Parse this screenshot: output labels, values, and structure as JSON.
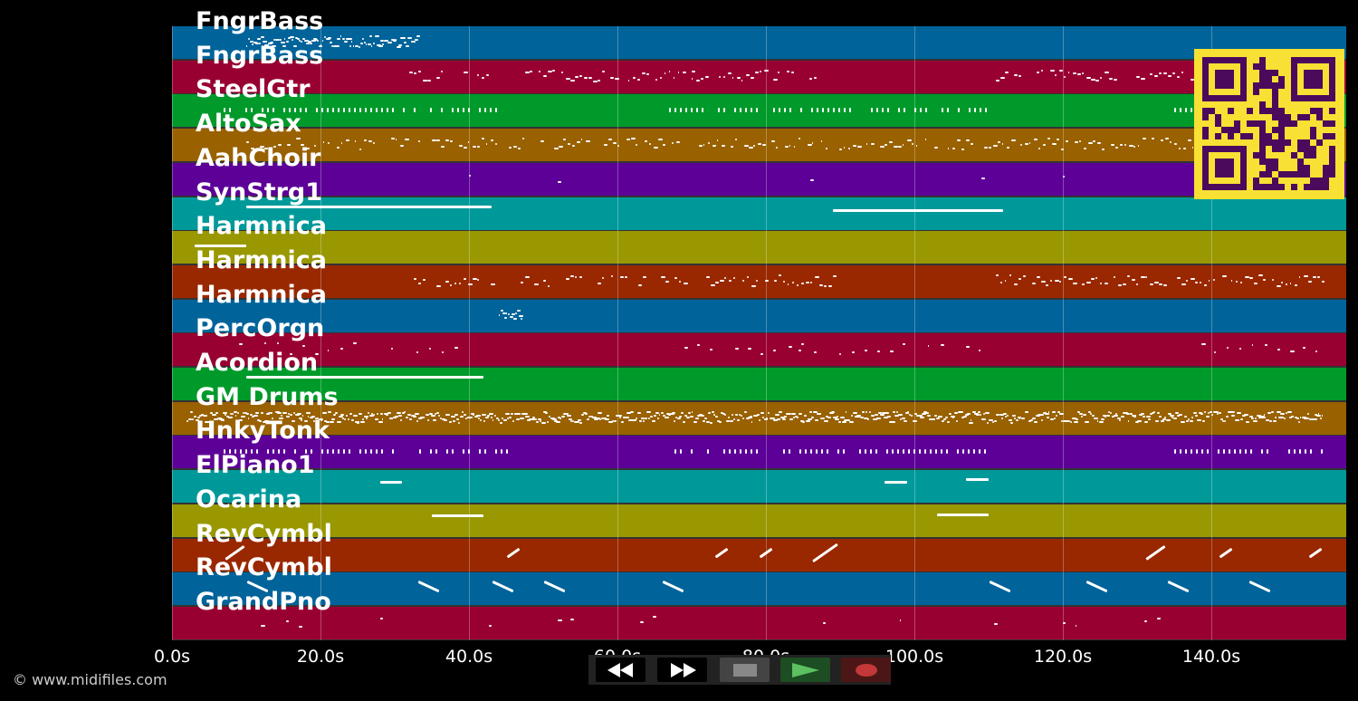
{
  "tracks": [
    {
      "name": "FngrBass",
      "color": "#00639a"
    },
    {
      "name": "FngrBass",
      "color": "#990032"
    },
    {
      "name": "SteelGtr",
      "color": "#009a2a"
    },
    {
      "name": "AltoSax",
      "color": "#996100"
    },
    {
      "name": "AahChoir",
      "color": "#5d0097"
    },
    {
      "name": "SynStrg1",
      "color": "#00999a"
    },
    {
      "name": "Harmnica",
      "color": "#999800"
    },
    {
      "name": "Harmnica",
      "color": "#992800"
    },
    {
      "name": "Harmnica",
      "color": "#00639a"
    },
    {
      "name": "PercOrgn",
      "color": "#990032"
    },
    {
      "name": "Acordion",
      "color": "#009a2a"
    },
    {
      "name": "GM Drums",
      "color": "#996100"
    },
    {
      "name": "HnkyTonk",
      "color": "#5d0097"
    },
    {
      "name": "ElPiano1",
      "color": "#00999a"
    },
    {
      "name": "Ocarina",
      "color": "#999800"
    },
    {
      "name": "RevCymbl",
      "color": "#992800"
    },
    {
      "name": "RevCymbl",
      "color": "#00639a"
    },
    {
      "name": "GrandPno",
      "color": "#990032"
    }
  ],
  "time_axis": {
    "max_seconds": 158,
    "ticks": [
      {
        "t": 0,
        "label": "0.0s"
      },
      {
        "t": 20,
        "label": "20.0s"
      },
      {
        "t": 40,
        "label": "40.0s"
      },
      {
        "t": 60,
        "label": "60.0s"
      },
      {
        "t": 80,
        "label": "80.0s"
      },
      {
        "t": 100,
        "label": "100.0s"
      },
      {
        "t": 120,
        "label": "120.0s"
      },
      {
        "t": 140,
        "label": "140.0s"
      }
    ]
  },
  "copyright": "© www.midifiles.com",
  "controls": {
    "rewind": "rewind-icon",
    "fast_forward": "fast-forward-icon",
    "stop": "stop-icon",
    "play": "play-icon",
    "record": "record-icon"
  },
  "qr_code": {
    "fg": "#4b0a5c",
    "bg": "#f9e034"
  }
}
